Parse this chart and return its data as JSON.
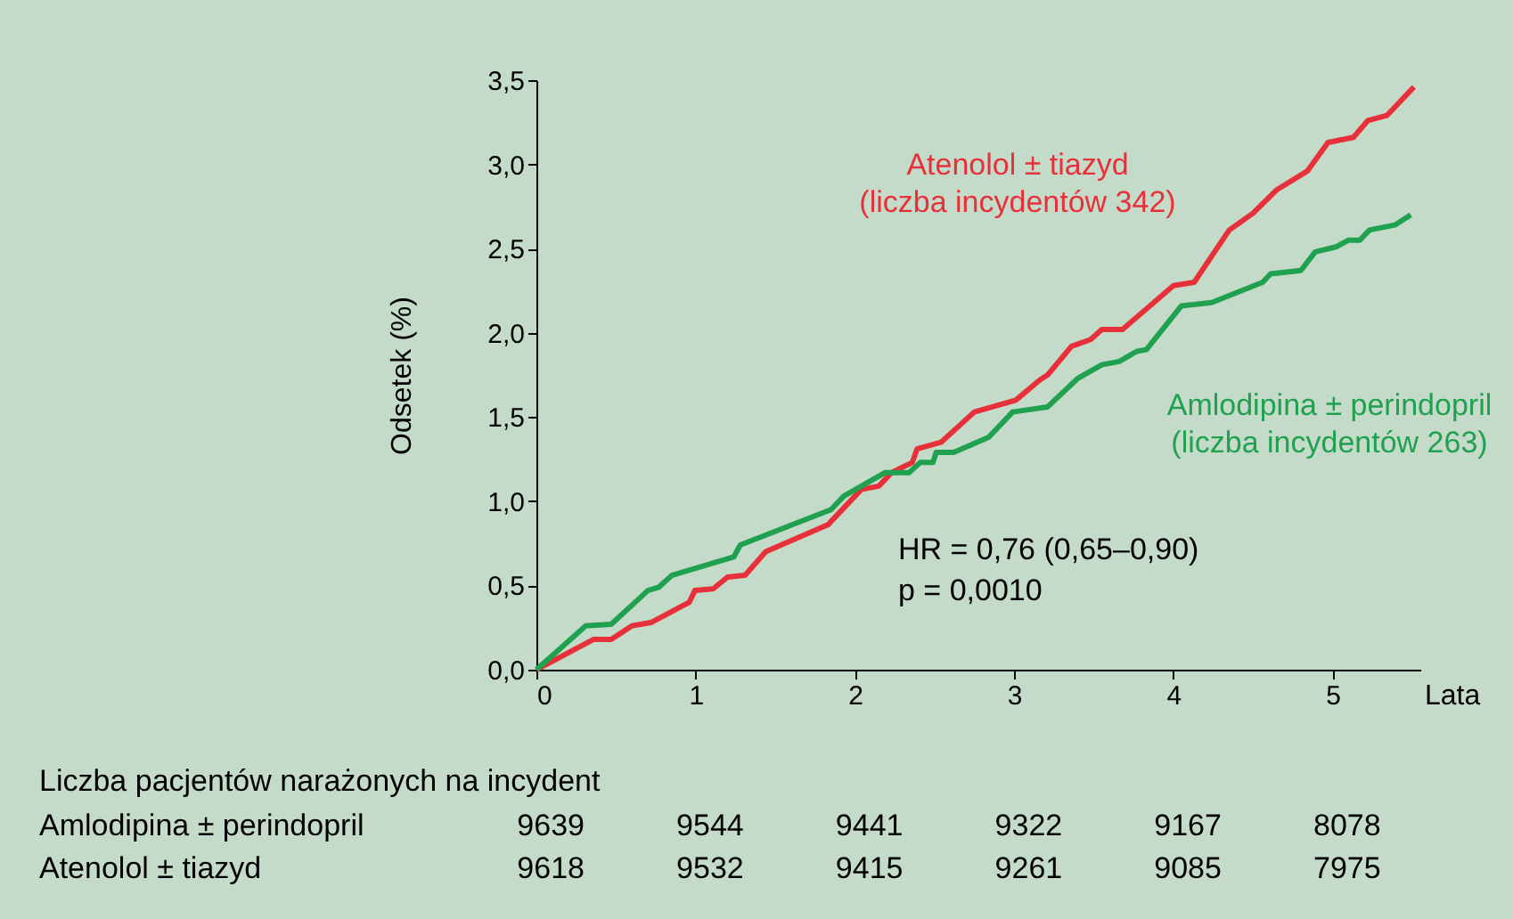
{
  "chart_data": {
    "type": "line",
    "xlabel": "Lata",
    "ylabel": "Odsetek (%)",
    "xlim": [
      0,
      5.55
    ],
    "xticks": [
      0,
      1,
      2,
      3,
      4,
      5
    ],
    "ylim": [
      0,
      3.5
    ],
    "yticks": [
      {
        "value": 0,
        "label": "0,0"
      },
      {
        "value": 0.5,
        "label": "0,5"
      },
      {
        "value": 1,
        "label": "1,0"
      },
      {
        "value": 1.5,
        "label": "1,5"
      },
      {
        "value": 2,
        "label": "2,0"
      },
      {
        "value": 2.5,
        "label": "2,5"
      },
      {
        "value": 3,
        "label": "3,0"
      },
      {
        "value": 3.5,
        "label": "3,5"
      }
    ],
    "grid": false,
    "legend": false,
    "marker": "none",
    "line_style": "solid",
    "series": [
      {
        "name": "Atenolol ± tiazyd\n(liczba incydentów  342)",
        "color": "#e8303a",
        "x": [
          0,
          0.36,
          0.47,
          0.6,
          0.72,
          0.96,
          0.995,
          1.11,
          1.2,
          1.31,
          1.44,
          1.83,
          2.04,
          2.15,
          2.23,
          2.36,
          2.39,
          2.54,
          2.75,
          3.01,
          3.16,
          3.21,
          3.36,
          3.48,
          3.55,
          3.68,
          4.0,
          4.13,
          4.35,
          4.5,
          4.65,
          4.84,
          4.97,
          5.13,
          5.22,
          5.34,
          5.51
        ],
        "values": [
          0,
          0.18,
          0.18,
          0.26,
          0.28,
          0.4,
          0.47,
          0.48,
          0.55,
          0.56,
          0.7,
          0.86,
          1.07,
          1.09,
          1.17,
          1.23,
          1.31,
          1.35,
          1.53,
          1.6,
          1.72,
          1.75,
          1.92,
          1.96,
          2.02,
          2.02,
          2.28,
          2.3,
          2.61,
          2.71,
          2.85,
          2.96,
          3.13,
          3.16,
          3.26,
          3.29,
          3.46
        ]
      },
      {
        "name": "Amlodipina ± perindopril\n(liczba incydentów 263)",
        "color": "#1fa150",
        "x": [
          0,
          0.31,
          0.47,
          0.7,
          0.77,
          0.85,
          1.24,
          1.28,
          1.85,
          1.93,
          2.19,
          2.34,
          2.41,
          2.49,
          2.51,
          2.62,
          2.84,
          2.99,
          3.21,
          3.4,
          3.55,
          3.66,
          3.77,
          3.83,
          4.05,
          4.24,
          4.56,
          4.61,
          4.8,
          4.89,
          5.02,
          5.1,
          5.17,
          5.23,
          5.39,
          5.49
        ],
        "values": [
          0,
          0.26,
          0.27,
          0.47,
          0.49,
          0.56,
          0.67,
          0.74,
          0.95,
          1.03,
          1.17,
          1.17,
          1.23,
          1.23,
          1.29,
          1.29,
          1.38,
          1.53,
          1.56,
          1.73,
          1.81,
          1.83,
          1.89,
          1.9,
          2.16,
          2.18,
          2.3,
          2.35,
          2.37,
          2.48,
          2.51,
          2.55,
          2.55,
          2.61,
          2.64,
          2.7
        ]
      }
    ],
    "annotations": [
      "HR = 0,76 (0,65–0,90)",
      "p = 0,0010",
      "Liczba pacjentów narażonych na incydent",
      "Amlodipina ± perindopril",
      "9639",
      "9544",
      "9441",
      "9322",
      "9167",
      "8078",
      "Atenolol ± tiazyd",
      "9618",
      "9532",
      "9415",
      "9261",
      "9085",
      "7975"
    ]
  }
}
